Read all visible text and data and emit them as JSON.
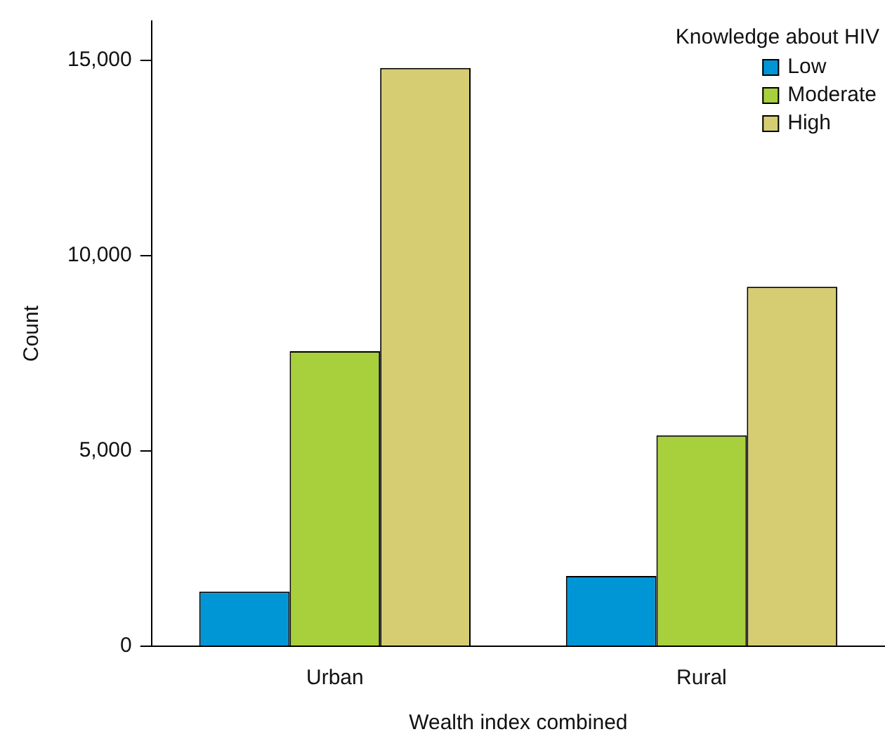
{
  "chart_data": {
    "type": "bar",
    "xlabel": "Wealth index combined",
    "ylabel": "Count",
    "legend_title": "Knowledge about HIV",
    "categories": [
      "Urban",
      "Rural"
    ],
    "series": [
      {
        "name": "Low",
        "color": "#0096d6",
        "values": [
          1400,
          1800
        ]
      },
      {
        "name": "Moderate",
        "color": "#a8cf3c",
        "values": [
          7550,
          5400
        ]
      },
      {
        "name": "High",
        "color": "#d6cd73",
        "values": [
          14800,
          9200
        ]
      }
    ],
    "ylim": [
      0,
      16000
    ],
    "yticks": [
      0,
      {
        "value": 5000,
        "label": "5,000"
      },
      {
        "value": 10000,
        "label": "10,000"
      },
      {
        "value": 15000,
        "label": "15,000"
      }
    ],
    "grid": false,
    "legend": "top right"
  }
}
